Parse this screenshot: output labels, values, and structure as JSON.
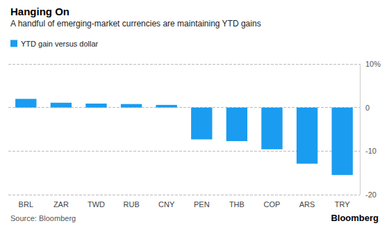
{
  "chart_data": {
    "type": "bar",
    "title": "Hanging On",
    "subtitle": "A handful of emerging-market currencies are maintaining YTD gains",
    "source": "Source: Bloomberg",
    "logo": "Bloomberg",
    "categories": [
      "BRL",
      "ZAR",
      "TWD",
      "RUB",
      "CNY",
      "PEN",
      "THB",
      "COP",
      "ARS",
      "TRY"
    ],
    "series": [
      {
        "name": "YTD gain versus dollar",
        "color": "#1a9cf0",
        "values": [
          2.0,
          1.1,
          0.9,
          0.8,
          0.6,
          -7.3,
          -7.7,
          -9.6,
          -12.9,
          -15.5
        ]
      }
    ],
    "ylim": [
      -20,
      10
    ],
    "yticks": [
      -20,
      -10,
      0,
      {
        "value": 10,
        "label": "10%"
      }
    ],
    "grid": true,
    "legend": "top-left"
  }
}
